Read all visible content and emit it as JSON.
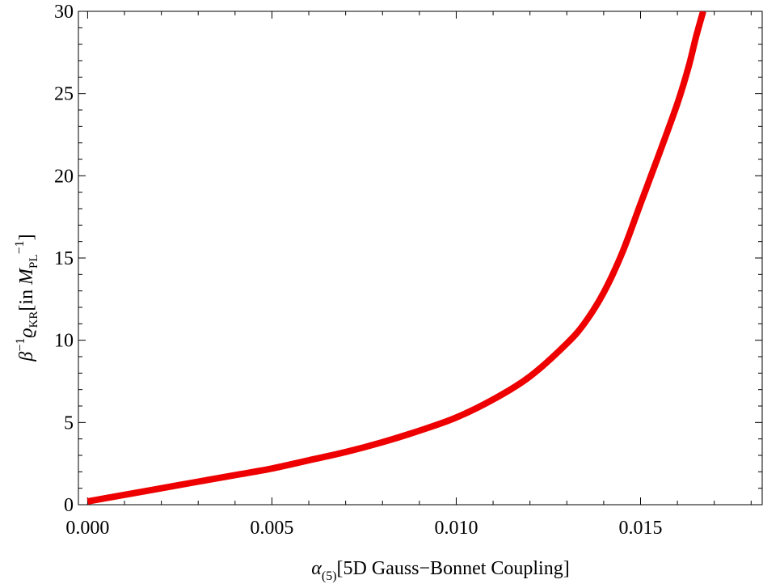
{
  "chart_data": {
    "type": "line",
    "title": "",
    "xlabel": {
      "symbol": "α",
      "subscript": "(5)",
      "text": "[5D Gauss−Bonnet Coupling]"
    },
    "ylabel": {
      "symbol": "β",
      "superscript": "−1",
      "quantity": "ϱ",
      "quantity_subscript": "KR",
      "bracket_open": "[in ",
      "unit": "M",
      "unit_subscript": "PL",
      "unit_superscript": "−1",
      "bracket_close": "]"
    },
    "xlim": [
      -0.00025,
      0.0183
    ],
    "ylim": [
      0,
      30
    ],
    "x_ticks": [
      0.0,
      0.005,
      0.01,
      0.015
    ],
    "x_tick_labels": [
      "0.000",
      "0.005",
      "0.010",
      "0.015"
    ],
    "y_ticks": [
      0,
      5,
      10,
      15,
      20,
      25,
      30
    ],
    "y_tick_labels": [
      "0",
      "5",
      "10",
      "15",
      "20",
      "25",
      "30"
    ],
    "grid": false,
    "series": [
      {
        "color": "#ee0000",
        "x": [
          0.0,
          0.001,
          0.002,
          0.003,
          0.004,
          0.005,
          0.006,
          0.007,
          0.008,
          0.009,
          0.01,
          0.011,
          0.012,
          0.013,
          0.0135,
          0.014,
          0.0145,
          0.015,
          0.0155,
          0.016,
          0.0163,
          0.0165,
          0.0167
        ],
        "y": [
          0.2,
          0.6,
          1.0,
          1.4,
          1.8,
          2.2,
          2.7,
          3.2,
          3.8,
          4.5,
          5.3,
          6.4,
          7.8,
          9.8,
          11.1,
          12.9,
          15.3,
          18.3,
          21.3,
          24.4,
          26.6,
          28.4,
          30.0
        ]
      }
    ]
  }
}
